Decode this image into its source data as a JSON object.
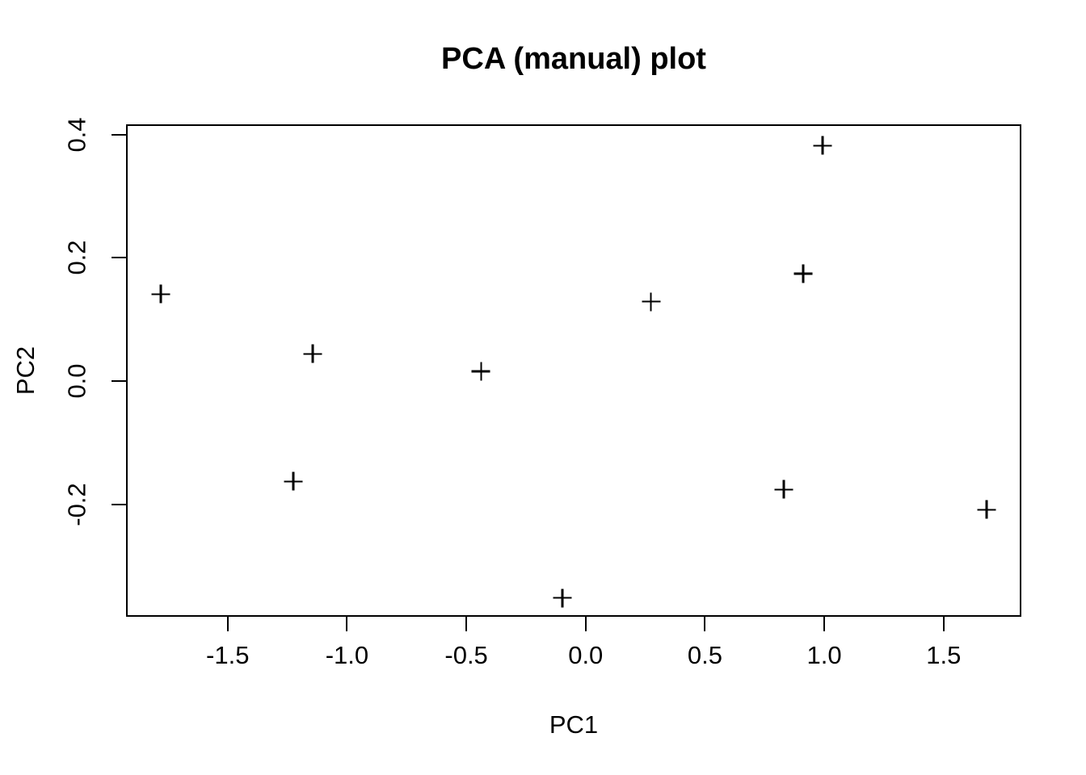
{
  "figure": {
    "background_color": "#ffffff",
    "foreground_color": "#000000"
  },
  "chart_data": {
    "type": "scatter",
    "title": "PCA (manual) plot",
    "xlabel": "PC1",
    "ylabel": "PC2",
    "marker": "plus",
    "marker_color": "#000000",
    "grid": false,
    "xlim": [
      -1.919,
      1.819
    ],
    "ylim": [
      -0.38,
      0.414
    ],
    "x_ticks": [
      -1.5,
      -1.0,
      -0.5,
      0.0,
      0.5,
      1.0,
      1.5
    ],
    "x_tick_labels": [
      "-1.5",
      "-1.0",
      "-0.5",
      "0.0",
      "0.5",
      "1.0",
      "1.5"
    ],
    "y_ticks": [
      -0.2,
      0.0,
      0.2,
      0.4
    ],
    "y_tick_labels": [
      "-0.2",
      "0.0",
      "0.2",
      "0.4"
    ],
    "points": [
      {
        "x": -1.781,
        "y": 0.141
      },
      {
        "x": -1.225,
        "y": -0.163
      },
      {
        "x": -1.143,
        "y": 0.044
      },
      {
        "x": -0.438,
        "y": 0.016
      },
      {
        "x": -0.098,
        "y": -0.352
      },
      {
        "x": 0.274,
        "y": 0.129
      },
      {
        "x": 0.83,
        "y": -0.176
      },
      {
        "x": 0.912,
        "y": 0.174
      },
      {
        "x": 0.993,
        "y": 0.382
      },
      {
        "x": 1.68,
        "y": -0.209
      }
    ]
  }
}
